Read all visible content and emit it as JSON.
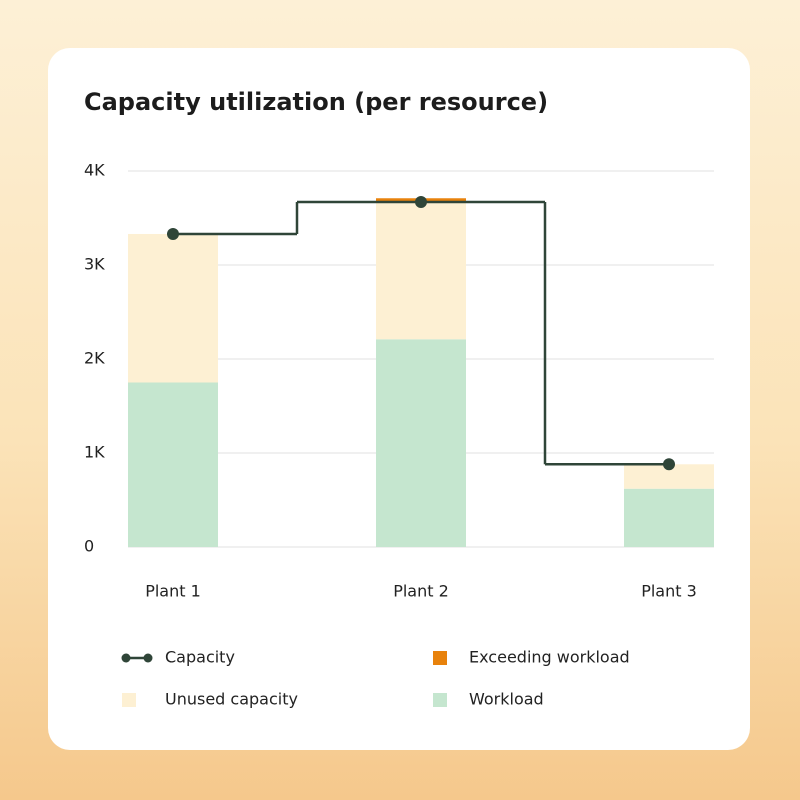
{
  "chart_data": {
    "type": "bar",
    "stacked": true,
    "title": "Capacity utilization (per resource)",
    "categories": [
      "Plant 1",
      "Plant 2",
      "Plant 3"
    ],
    "series": [
      {
        "name": "Capacity",
        "type": "step",
        "color": "#2f4538",
        "values": [
          3330,
          3670,
          880
        ]
      },
      {
        "name": "Exceeding workload",
        "color": "#e8820c",
        "values": [
          null,
          50,
          null
        ]
      },
      {
        "name": "Unused capacity",
        "color": "#fdf0d3",
        "values": [
          1580,
          1450,
          260
        ]
      },
      {
        "name": "Workload",
        "color": "#c5e6cf",
        "values": [
          1750,
          2210,
          620
        ]
      }
    ],
    "ylim": [
      0,
      4000
    ],
    "yticks": [
      0,
      {
        "value": 1000,
        "label": "1K"
      },
      {
        "value": 2000,
        "label": "2K"
      },
      {
        "value": 3000,
        "label": "3K"
      },
      {
        "value": 4000,
        "label": "4K"
      }
    ],
    "grid": true
  }
}
